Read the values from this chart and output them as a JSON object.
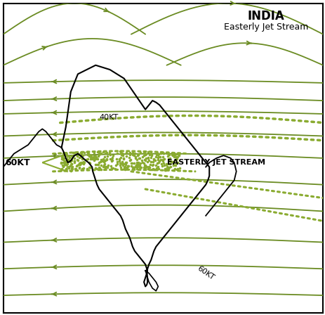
{
  "title_bold": "INDIA",
  "title_sub": "Easterly Jet Stream",
  "green_color": "#6b8c23",
  "green_dot_color": "#8aab30",
  "india_color": "#000000",
  "bg_color": "#ffffff",
  "border_color": "#000000",
  "label_40kt": "40KT",
  "label_60kt_left": "60KT",
  "label_60kt_bottom": "60KT",
  "label_jet": "EASTERLY JET STREAM",
  "xlim": [
    60,
    105
  ],
  "ylim": [
    5,
    40
  ]
}
